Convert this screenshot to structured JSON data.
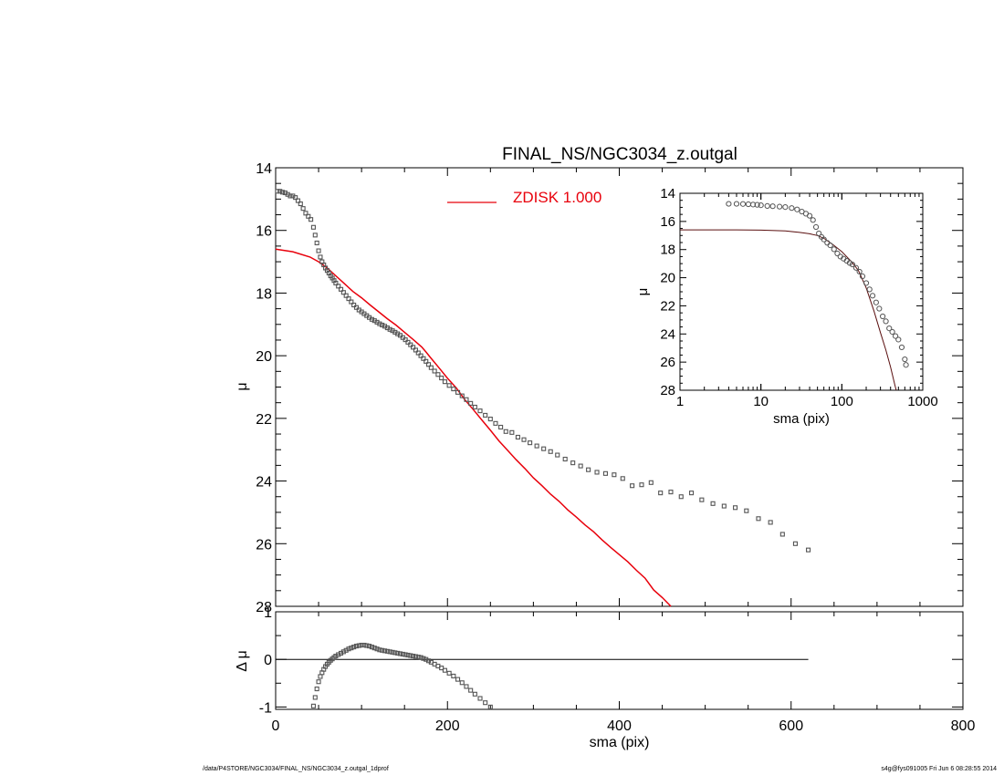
{
  "title": "FINAL_NS/NGC3034_z.outgal",
  "footer": {
    "left": "/data/P4STORE/NGC3034/FINAL_NS/NGC3034_z.outgal_1dprof",
    "right": "s4g@fys091005  Fri Jun  6 08:28:55 2014"
  },
  "colors": {
    "model": "#e8000b",
    "inset_model": "#5a0f0f",
    "points": "#555555",
    "axes": "#000000"
  },
  "chart_data": [
    {
      "type": "scatter",
      "panel": "main",
      "title": "FINAL_NS/NGC3034_z.outgal",
      "xlabel": "",
      "ylabel": "μ",
      "xlim": [
        0,
        800
      ],
      "ylim": [
        28,
        14
      ],
      "y_inverted": true,
      "yticks": [
        14,
        16,
        18,
        20,
        22,
        24,
        26,
        28
      ],
      "legend": {
        "label": "ZDISK  1.000",
        "placement": "top-center"
      },
      "series": [
        {
          "name": "ZDISK  1.000",
          "kind": "line",
          "x": [
            0,
            20,
            40,
            50,
            60,
            70,
            80,
            90,
            100,
            110,
            120,
            130,
            140,
            150,
            160,
            170,
            175,
            180,
            190,
            200,
            210,
            220,
            230,
            240,
            250,
            260,
            270,
            280,
            290,
            300,
            310,
            320,
            330,
            340,
            350,
            360,
            370,
            380,
            390,
            400,
            410,
            420,
            430,
            440,
            450,
            460
          ],
          "y": [
            16.6,
            16.68,
            16.85,
            17.0,
            17.2,
            17.45,
            17.7,
            17.95,
            18.15,
            18.38,
            18.6,
            18.82,
            19.02,
            19.25,
            19.48,
            19.72,
            19.88,
            20.05,
            20.38,
            20.72,
            21.02,
            21.4,
            21.72,
            22.05,
            22.38,
            22.72,
            23.02,
            23.32,
            23.6,
            23.9,
            24.15,
            24.42,
            24.65,
            24.92,
            25.15,
            25.4,
            25.62,
            25.88,
            26.12,
            26.35,
            26.58,
            26.85,
            27.1,
            27.48,
            27.72,
            28.0
          ]
        },
        {
          "name": "",
          "kind": "points",
          "x": [
            2,
            5,
            8,
            11,
            14,
            17,
            20,
            23,
            26,
            29,
            32,
            35,
            38,
            41,
            44,
            46,
            48,
            50,
            52,
            54,
            56,
            58,
            60,
            62,
            64,
            66,
            68,
            70,
            73,
            76,
            79,
            82,
            85,
            88,
            91,
            94,
            97,
            100,
            103,
            106,
            109,
            112,
            115,
            118,
            121,
            124,
            127,
            130,
            133,
            136,
            139,
            142,
            145,
            148,
            151,
            154,
            157,
            160,
            163,
            166,
            169,
            172,
            175,
            178,
            181,
            185,
            189,
            193,
            197,
            202,
            207,
            212,
            217,
            222,
            227,
            232,
            238,
            244,
            250,
            256,
            262,
            268,
            275,
            282,
            289,
            296,
            304,
            312,
            320,
            328,
            337,
            346,
            355,
            364,
            374,
            384,
            394,
            404,
            415,
            426,
            437,
            448,
            460,
            472,
            484,
            496,
            509,
            522,
            535,
            548,
            562,
            576,
            590,
            605,
            620
          ],
          "y": [
            14.75,
            14.75,
            14.78,
            14.8,
            14.85,
            14.9,
            14.9,
            14.95,
            15.05,
            15.15,
            15.3,
            15.45,
            15.55,
            15.65,
            15.9,
            16.15,
            16.4,
            16.65,
            16.85,
            17.0,
            17.1,
            17.2,
            17.28,
            17.36,
            17.45,
            17.52,
            17.6,
            17.68,
            17.78,
            17.88,
            17.98,
            18.08,
            18.18,
            18.28,
            18.38,
            18.46,
            18.54,
            18.6,
            18.66,
            18.72,
            18.78,
            18.84,
            18.88,
            18.93,
            18.98,
            19.02,
            19.06,
            19.11,
            19.16,
            19.2,
            19.25,
            19.3,
            19.35,
            19.42,
            19.49,
            19.57,
            19.65,
            19.73,
            19.82,
            19.91,
            20.0,
            20.09,
            20.18,
            20.28,
            20.38,
            20.49,
            20.6,
            20.71,
            20.83,
            20.95,
            21.06,
            21.17,
            21.28,
            21.4,
            21.52,
            21.64,
            21.76,
            21.9,
            22.02,
            22.16,
            22.28,
            22.42,
            22.45,
            22.6,
            22.68,
            22.78,
            22.88,
            22.97,
            23.06,
            23.17,
            23.3,
            23.42,
            23.52,
            23.64,
            23.72,
            23.76,
            23.8,
            23.92,
            24.15,
            24.12,
            24.05,
            24.38,
            24.35,
            24.5,
            24.38,
            24.6,
            24.72,
            24.8,
            24.85,
            24.95,
            25.2,
            25.32,
            25.7,
            26.0,
            26.2
          ]
        }
      ]
    },
    {
      "type": "scatter",
      "panel": "inset",
      "xlabel": "sma (pix)",
      "ylabel": "μ",
      "xscale": "log",
      "xlim": [
        1,
        1000
      ],
      "ylim": [
        28,
        14
      ],
      "y_inverted": true,
      "xticks": [
        1,
        10,
        100,
        1000
      ],
      "yticks": [
        14,
        16,
        18,
        20,
        22,
        24,
        26,
        28
      ],
      "series": [
        {
          "name": "",
          "kind": "line",
          "x": [
            1,
            5,
            10,
            20,
            30,
            40,
            50,
            60,
            80,
            100,
            130,
            160,
            200,
            250,
            300,
            350,
            400,
            450,
            470
          ],
          "y": [
            16.6,
            16.6,
            16.62,
            16.68,
            16.78,
            16.88,
            17.0,
            17.2,
            17.7,
            18.15,
            18.82,
            19.48,
            20.72,
            22.38,
            23.9,
            25.15,
            26.35,
            27.6,
            28.0
          ]
        },
        {
          "name": "",
          "kind": "points",
          "x": [
            4,
            5,
            6,
            7,
            8,
            9,
            10,
            12,
            14,
            17,
            20,
            24,
            28,
            32,
            36,
            40,
            44,
            48,
            52,
            56,
            60,
            66,
            72,
            80,
            88,
            96,
            105,
            115,
            125,
            135,
            150,
            165,
            180,
            200,
            220,
            240,
            265,
            290,
            320,
            350,
            385,
            420,
            460,
            500,
            550,
            600,
            620
          ],
          "y": [
            14.75,
            14.75,
            14.76,
            14.78,
            14.8,
            14.82,
            14.85,
            14.9,
            14.92,
            14.95,
            14.98,
            15.05,
            15.15,
            15.3,
            15.45,
            15.6,
            15.9,
            16.4,
            16.85,
            17.1,
            17.28,
            17.52,
            17.7,
            17.98,
            18.28,
            18.5,
            18.65,
            18.8,
            18.95,
            19.06,
            19.3,
            19.57,
            19.9,
            20.38,
            20.83,
            21.28,
            21.76,
            22.2,
            22.75,
            23.1,
            23.6,
            23.85,
            24.15,
            24.4,
            24.95,
            25.8,
            26.2
          ]
        }
      ]
    },
    {
      "type": "scatter",
      "panel": "residual",
      "xlabel": "sma (pix)",
      "ylabel": "Δ μ",
      "xlim": [
        0,
        800
      ],
      "ylim": [
        -1.05,
        1.0
      ],
      "xticks": [
        0,
        200,
        400,
        600,
        800
      ],
      "yticks": [
        1,
        0,
        -1
      ],
      "reference_line": {
        "y": 0,
        "x_end": 620
      },
      "series": [
        {
          "name": "",
          "kind": "points",
          "x": [
            44,
            46,
            48,
            50,
            52,
            54,
            56,
            58,
            60,
            62,
            64,
            66,
            68,
            70,
            73,
            76,
            79,
            82,
            85,
            88,
            91,
            94,
            97,
            100,
            103,
            106,
            109,
            112,
            115,
            118,
            121,
            124,
            127,
            130,
            133,
            136,
            139,
            142,
            145,
            148,
            151,
            154,
            157,
            160,
            163,
            166,
            169,
            172,
            175,
            178,
            181,
            185,
            189,
            193,
            197,
            202,
            207,
            212,
            217,
            222,
            227,
            232,
            238,
            244,
            250
          ],
          "y": [
            -0.98,
            -0.8,
            -0.62,
            -0.47,
            -0.36,
            -0.28,
            -0.21,
            -0.15,
            -0.1,
            -0.06,
            -0.02,
            0.01,
            0.04,
            0.07,
            0.1,
            0.13,
            0.16,
            0.19,
            0.22,
            0.24,
            0.26,
            0.28,
            0.29,
            0.3,
            0.3,
            0.29,
            0.28,
            0.26,
            0.24,
            0.22,
            0.2,
            0.19,
            0.18,
            0.17,
            0.16,
            0.15,
            0.14,
            0.13,
            0.12,
            0.11,
            0.1,
            0.09,
            0.08,
            0.07,
            0.06,
            0.05,
            0.04,
            0.02,
            0.0,
            -0.03,
            -0.06,
            -0.1,
            -0.14,
            -0.18,
            -0.23,
            -0.29,
            -0.35,
            -0.42,
            -0.49,
            -0.57,
            -0.65,
            -0.73,
            -0.82,
            -0.91,
            -1.0
          ]
        }
      ]
    }
  ]
}
